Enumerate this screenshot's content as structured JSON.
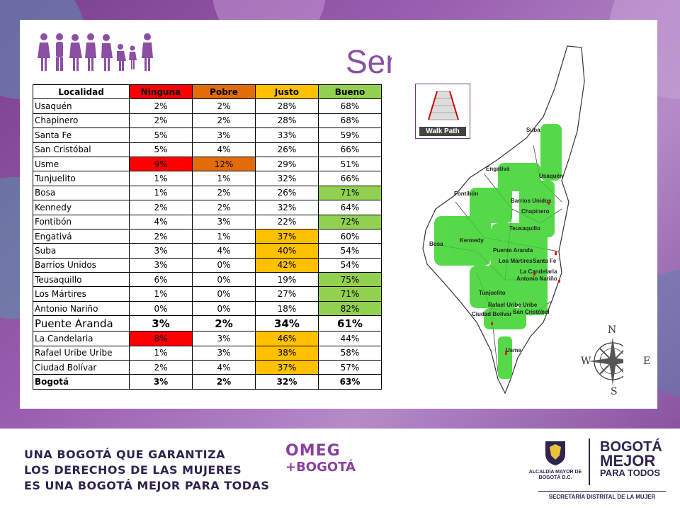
{
  "title": "Sendero",
  "table": {
    "headers": [
      "Localidad",
      "Ninguna",
      "Pobre",
      "Justo",
      "Bueno"
    ],
    "rows": [
      {
        "localidad": "Usaquén",
        "values": [
          "2%",
          "2%",
          "28%",
          "68%"
        ],
        "hl": [
          "",
          "",
          "",
          ""
        ]
      },
      {
        "localidad": "Chapinero",
        "values": [
          "2%",
          "2%",
          "28%",
          "68%"
        ],
        "hl": [
          "",
          "",
          "",
          ""
        ]
      },
      {
        "localidad": "Santa Fe",
        "values": [
          "5%",
          "3%",
          "33%",
          "59%"
        ],
        "hl": [
          "",
          "",
          "",
          ""
        ]
      },
      {
        "localidad": "San Cristóbal",
        "values": [
          "5%",
          "4%",
          "26%",
          "66%"
        ],
        "hl": [
          "",
          "",
          "",
          ""
        ]
      },
      {
        "localidad": "Usme",
        "values": [
          "9%",
          "12%",
          "29%",
          "51%"
        ],
        "hl": [
          "red",
          "orange",
          "",
          ""
        ]
      },
      {
        "localidad": "Tunjuelito",
        "values": [
          "1%",
          "1%",
          "32%",
          "66%"
        ],
        "hl": [
          "",
          "",
          "",
          ""
        ]
      },
      {
        "localidad": "Bosa",
        "values": [
          "1%",
          "2%",
          "26%",
          "71%"
        ],
        "hl": [
          "",
          "",
          "",
          "green"
        ]
      },
      {
        "localidad": "Kennedy",
        "values": [
          "2%",
          "2%",
          "32%",
          "64%"
        ],
        "hl": [
          "",
          "",
          "",
          ""
        ]
      },
      {
        "localidad": "Fontibón",
        "values": [
          "4%",
          "3%",
          "22%",
          "72%"
        ],
        "hl": [
          "",
          "",
          "",
          "green"
        ]
      },
      {
        "localidad": "Engativá",
        "values": [
          "2%",
          "1%",
          "37%",
          "60%"
        ],
        "hl": [
          "",
          "",
          "yellow",
          ""
        ]
      },
      {
        "localidad": "Suba",
        "values": [
          "3%",
          "4%",
          "40%",
          "54%"
        ],
        "hl": [
          "",
          "",
          "yellow",
          ""
        ]
      },
      {
        "localidad": "Barrios Unidos",
        "values": [
          "3%",
          "0%",
          "42%",
          "54%"
        ],
        "hl": [
          "",
          "",
          "yellow",
          ""
        ]
      },
      {
        "localidad": "Teusaquillo",
        "values": [
          "6%",
          "0%",
          "19%",
          "75%"
        ],
        "hl": [
          "",
          "",
          "",
          "green"
        ]
      },
      {
        "localidad": "Los Mártires",
        "values": [
          "1%",
          "0%",
          "27%",
          "71%"
        ],
        "hl": [
          "",
          "",
          "",
          "green"
        ]
      },
      {
        "localidad": "Antonio Nariño",
        "values": [
          "0%",
          "0%",
          "18%",
          "82%"
        ],
        "hl": [
          "",
          "",
          "",
          "green"
        ]
      },
      {
        "localidad": "Puente Aranda",
        "values": [
          "3%",
          "2%",
          "34%",
          "61%"
        ],
        "hl": [
          "",
          "",
          "",
          ""
        ],
        "big": true
      },
      {
        "localidad": "La Candelaria",
        "values": [
          "8%",
          "3%",
          "46%",
          "44%"
        ],
        "hl": [
          "red",
          "",
          "yellow",
          ""
        ]
      },
      {
        "localidad": "Rafael Uribe Uribe",
        "values": [
          "1%",
          "3%",
          "38%",
          "58%"
        ],
        "hl": [
          "",
          "",
          "yellow",
          ""
        ]
      },
      {
        "localidad": "Ciudad Bolívar",
        "values": [
          "2%",
          "4%",
          "37%",
          "57%"
        ],
        "hl": [
          "",
          "",
          "yellow",
          ""
        ]
      },
      {
        "localidad": "Bogotá",
        "values": [
          "3%",
          "2%",
          "32%",
          "63%"
        ],
        "hl": [
          "",
          "",
          "",
          ""
        ],
        "total": true
      }
    ]
  },
  "legend": {
    "label": "Walk Path"
  },
  "map": {
    "labels": [
      "Suba",
      "Engativá",
      "Usaquén",
      "Fontibón",
      "Barrios Unidos",
      "Chapinero",
      "Teusaquillo",
      "Bosa",
      "Kennedy",
      "Puente Aranda",
      "Los Mártires",
      "Santa Fe",
      "La Candelaria",
      "Antonio Nariño",
      "Tunjuelito",
      "Rafael Uribe Uribe",
      "Ciudad Bolívar",
      "San Cristóbal",
      "Usme"
    ],
    "compass": {
      "n": "N",
      "s": "S",
      "e": "E",
      "w": "W"
    }
  },
  "footer": {
    "slogan": [
      "UNA BOGOTÁ QUE GARANTIZA",
      "LOS DERECHOS DE LAS MUJERES",
      "ES UNA BOGOTÁ MEJOR PARA TODAS"
    ],
    "omeg_top": "OMEG",
    "omeg_bottom": "+BOGOTÁ",
    "alcaldia": "ALCALDÍA MAYOR DE BOGOTÁ D.C.",
    "bogota_l1": "BOGOTÁ",
    "bogota_l2": "MEJOR",
    "bogota_l3": "PARA TODOS",
    "secretaria": "SECRETARÍA DISTRITAL DE LA MUJER"
  }
}
